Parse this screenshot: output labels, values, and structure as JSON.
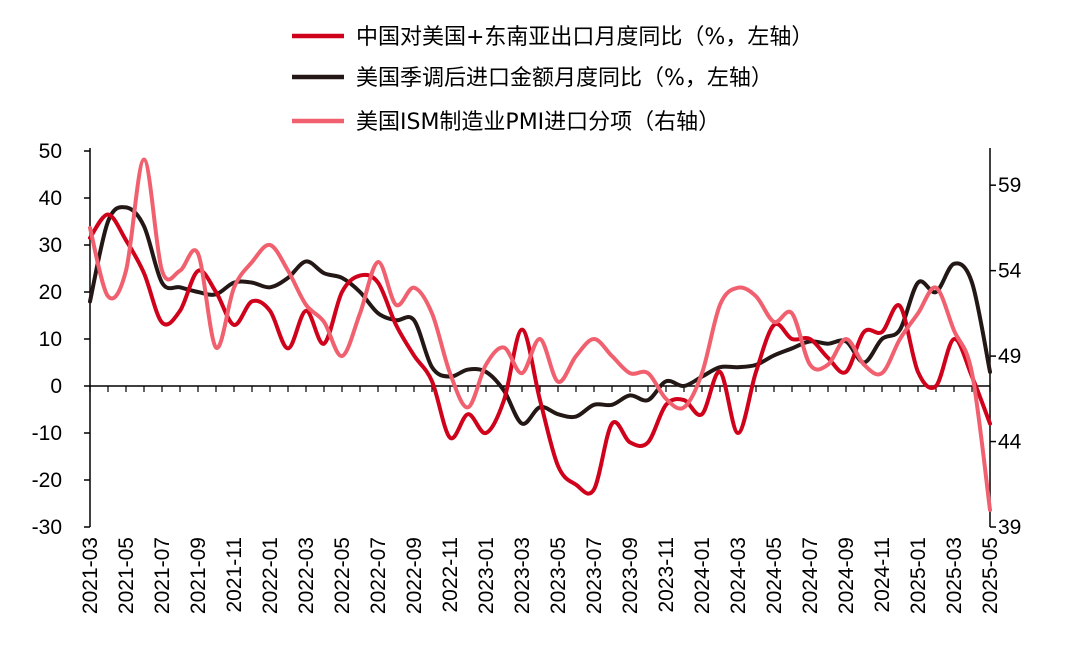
{
  "chart_data": {
    "type": "line",
    "x": [
      "2021-03",
      "2021-04",
      "2021-05",
      "2021-06",
      "2021-07",
      "2021-08",
      "2021-09",
      "2021-10",
      "2021-11",
      "2021-12",
      "2022-01",
      "2022-02",
      "2022-03",
      "2022-04",
      "2022-05",
      "2022-06",
      "2022-07",
      "2022-08",
      "2022-09",
      "2022-10",
      "2022-11",
      "2022-12",
      "2023-01",
      "2023-02",
      "2023-03",
      "2023-04",
      "2023-05",
      "2023-06",
      "2023-07",
      "2023-08",
      "2023-09",
      "2023-10",
      "2023-11",
      "2023-12",
      "2024-01",
      "2024-02",
      "2024-03",
      "2024-04",
      "2024-05",
      "2024-06",
      "2024-07",
      "2024-08",
      "2024-09",
      "2024-10",
      "2024-11",
      "2024-12",
      "2025-01",
      "2025-02",
      "2025-03",
      "2025-04",
      "2025-05"
    ],
    "x_tick_labels": [
      "2021-03",
      "2021-05",
      "2021-07",
      "2021-09",
      "2021-11",
      "2022-01",
      "2022-03",
      "2022-05",
      "2022-07",
      "2022-09",
      "2022-11",
      "2023-01",
      "2023-03",
      "2023-05",
      "2023-07",
      "2023-09",
      "2023-11",
      "2024-01",
      "2024-03",
      "2024-05",
      "2024-07",
      "2024-09",
      "2024-11",
      "2025-01",
      "2025-03",
      "2025-05"
    ],
    "y_left": {
      "lim": [
        -30,
        50
      ],
      "ticks": [
        "50",
        "40",
        "30",
        "20",
        "10",
        "0",
        "-10",
        "-20",
        "-30"
      ]
    },
    "y_right": {
      "lim": [
        39,
        61
      ],
      "ticks": [
        "59",
        "54",
        "49",
        "44",
        "39"
      ]
    },
    "legend_position": "top-center",
    "series": [
      {
        "name": "中国对美国+东南亚出口月度同比（%，左轴）",
        "axis": "left",
        "color": "#d0021b",
        "values": [
          31.5,
          36.5,
          31,
          24,
          13.5,
          16,
          24.5,
          20,
          13,
          18,
          16,
          8,
          16,
          9,
          20,
          23.5,
          22,
          13,
          6.5,
          1,
          -11,
          -6,
          -10,
          -3,
          12,
          -3,
          -17,
          -21,
          -22,
          -8,
          -12,
          -12,
          -4,
          -3,
          -6,
          3,
          -10,
          3,
          13,
          10,
          10,
          6,
          3,
          11.5,
          11.5,
          17,
          3,
          0,
          10,
          2,
          -8
        ]
      },
      {
        "name": "美国季调后进口金额月度同比（%，左轴）",
        "axis": "left",
        "color": "#231815",
        "values": [
          18,
          35,
          38,
          34,
          22,
          21,
          20,
          19.5,
          22,
          22,
          21,
          23,
          26.5,
          24,
          23,
          20,
          15.5,
          14,
          14,
          4,
          2,
          3.5,
          3,
          -1,
          -8,
          -4.5,
          -6,
          -6.5,
          -4,
          -4,
          -2,
          -3,
          1,
          0,
          2,
          4,
          4,
          4.5,
          6.5,
          8,
          9.5,
          9,
          9.5,
          5,
          10,
          12,
          22,
          20,
          26,
          22,
          3
        ]
      },
      {
        "name": "美国ISM制造业PMI进口分项（右轴）",
        "axis": "right",
        "color": "#f0606e",
        "values": [
          56.5,
          52.5,
          54,
          60.5,
          54,
          54,
          55,
          49.5,
          53,
          54.5,
          55.5,
          54,
          52,
          51,
          49,
          51.5,
          54.5,
          52,
          53,
          51.5,
          48,
          46,
          48.5,
          49.5,
          48,
          50,
          47.5,
          49,
          50,
          49,
          48,
          48,
          46.5,
          46,
          48,
          52,
          53,
          52.5,
          51,
          51.5,
          48.5,
          48.5,
          50,
          48.5,
          48,
          50,
          51.5,
          53,
          50.5,
          48,
          40
        ]
      }
    ]
  }
}
